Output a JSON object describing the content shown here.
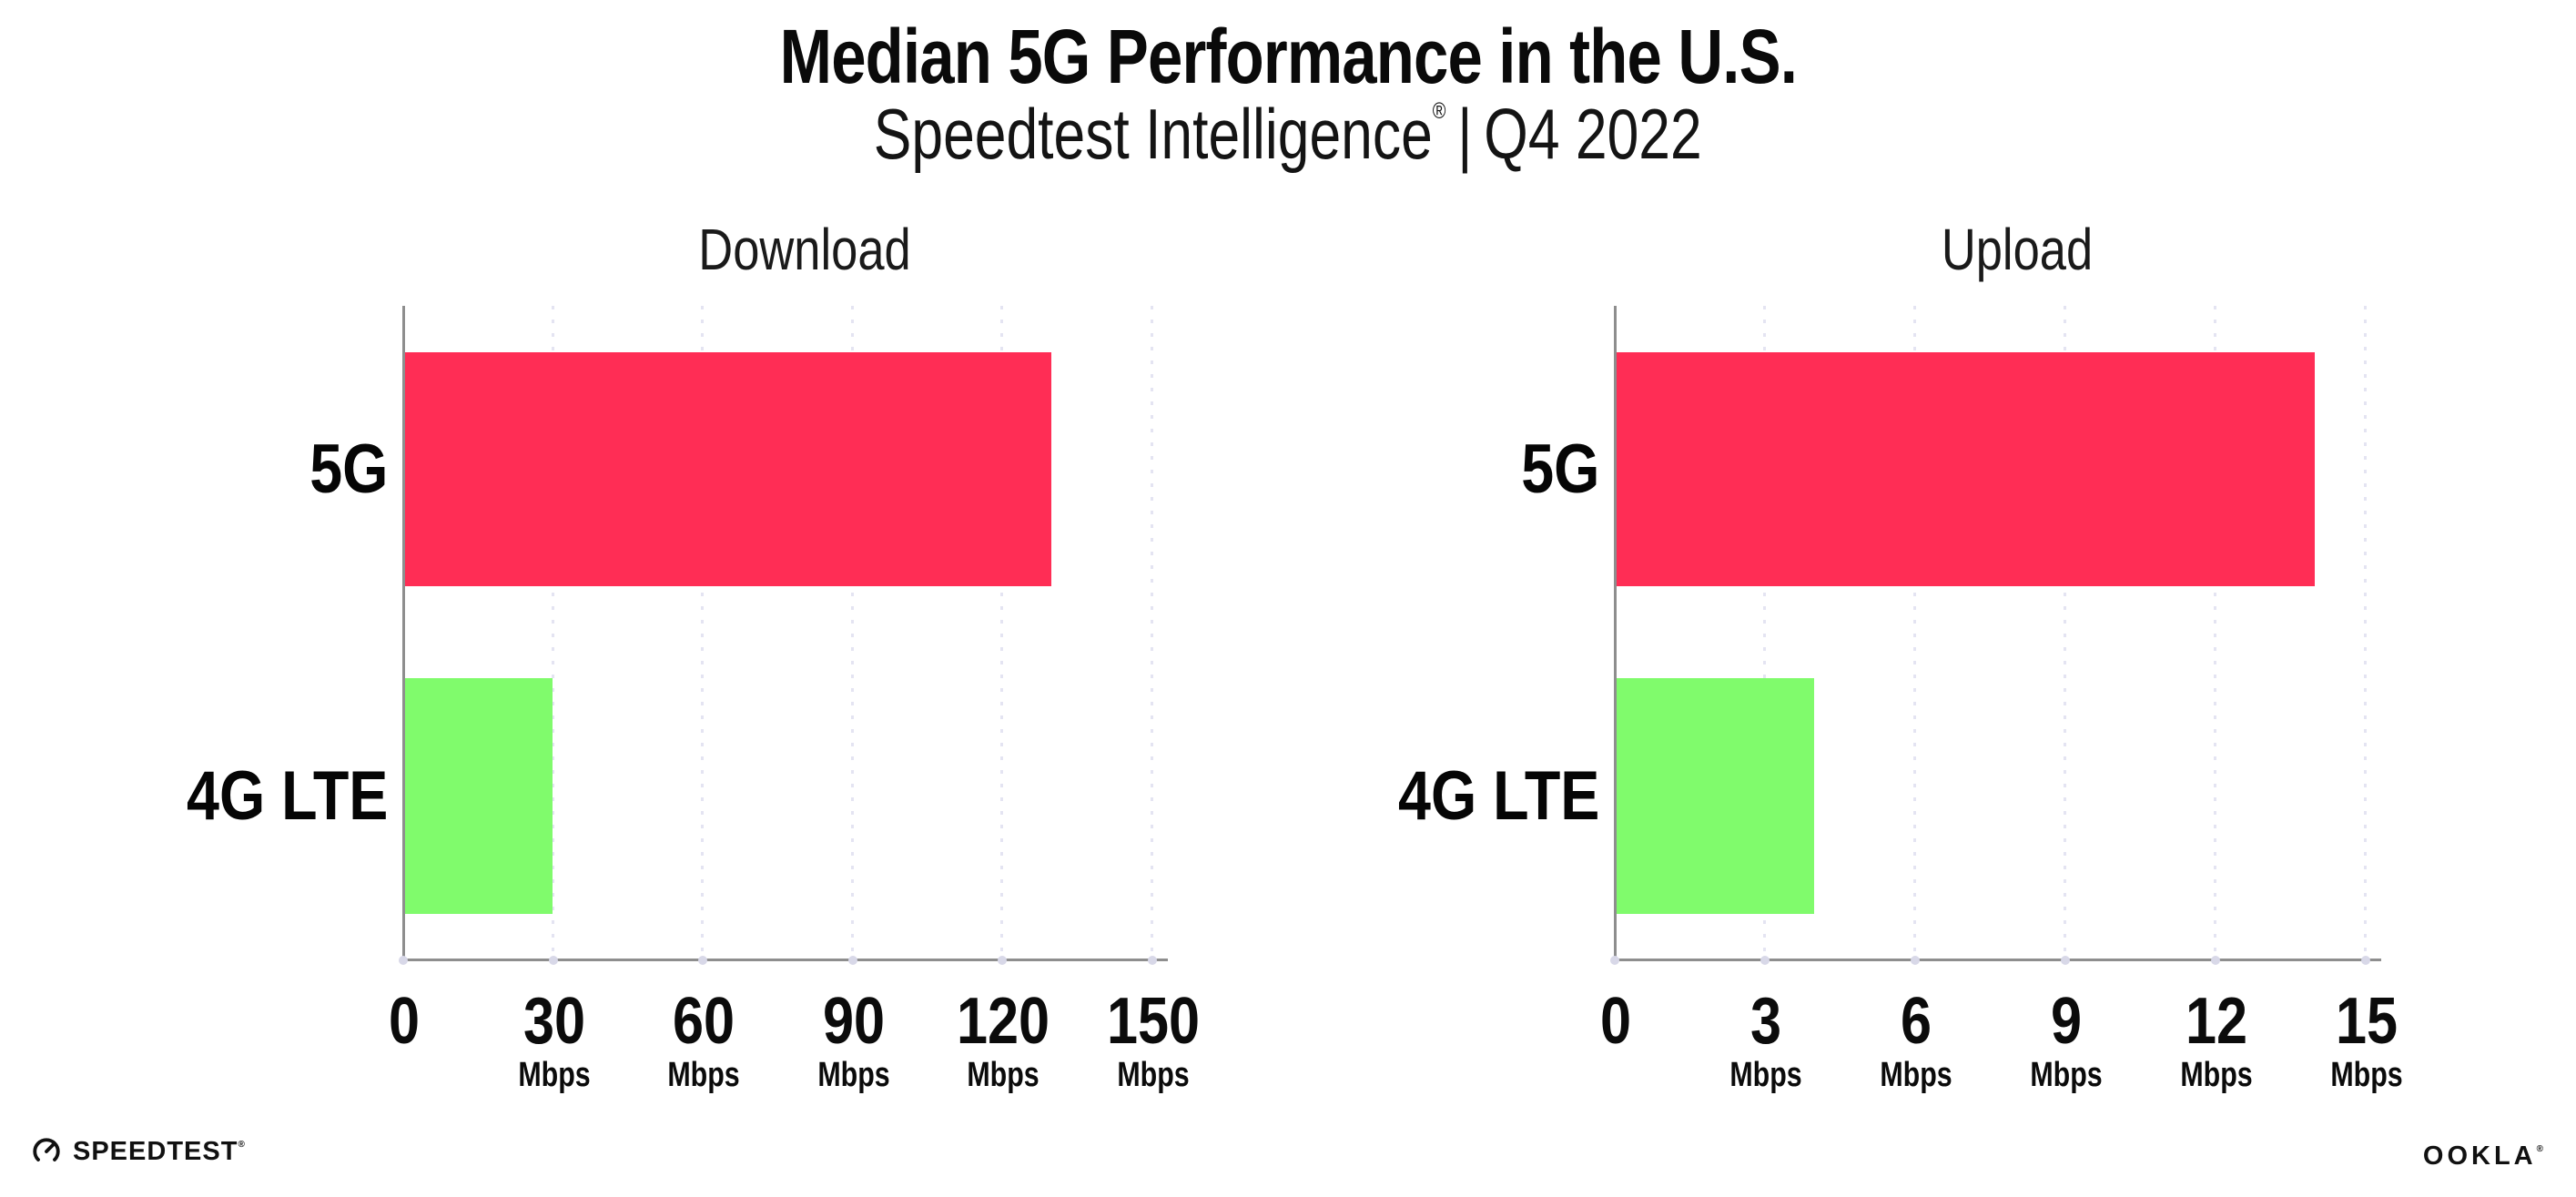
{
  "header": {
    "title": "Median 5G Performance in the U.S.",
    "subtitle_brand": "Speedtest Intelligence",
    "subtitle_reg": "®",
    "subtitle_divider": "|",
    "subtitle_period": "Q4 2022"
  },
  "chart_data": [
    {
      "type": "bar",
      "orientation": "horizontal",
      "title": "Download",
      "unit": "Mbps",
      "categories": [
        "5G",
        "4G LTE"
      ],
      "values": [
        130,
        30
      ],
      "ticks": [
        0,
        30,
        60,
        90,
        120,
        150
      ],
      "xlim": [
        0,
        150
      ],
      "bar_colors": [
        "#FF2D55",
        "#80FB6C"
      ],
      "grid": "vertical-dotted",
      "legend": "none"
    },
    {
      "type": "bar",
      "orientation": "horizontal",
      "title": "Upload",
      "unit": "Mbps",
      "categories": [
        "5G",
        "4G LTE"
      ],
      "values": [
        14,
        4
      ],
      "ticks": [
        0,
        3,
        6,
        9,
        12,
        15
      ],
      "xlim": [
        0,
        15
      ],
      "bar_colors": [
        "#FF2D55",
        "#80FB6C"
      ],
      "grid": "vertical-dotted",
      "legend": "none"
    }
  ],
  "colors": {
    "bar_5g": "#FF2D55",
    "bar_4g_lte": "#80FB6C",
    "axis": "#8E8E8E",
    "gridline": "#E4E4F2",
    "axis_dot": "#D8D8E8",
    "text": "#0B0B0B"
  },
  "footer": {
    "speedtest_label": "SPEEDTEST",
    "speedtest_reg": "®",
    "ookla_label": "OOKLA",
    "ookla_reg": "®"
  }
}
